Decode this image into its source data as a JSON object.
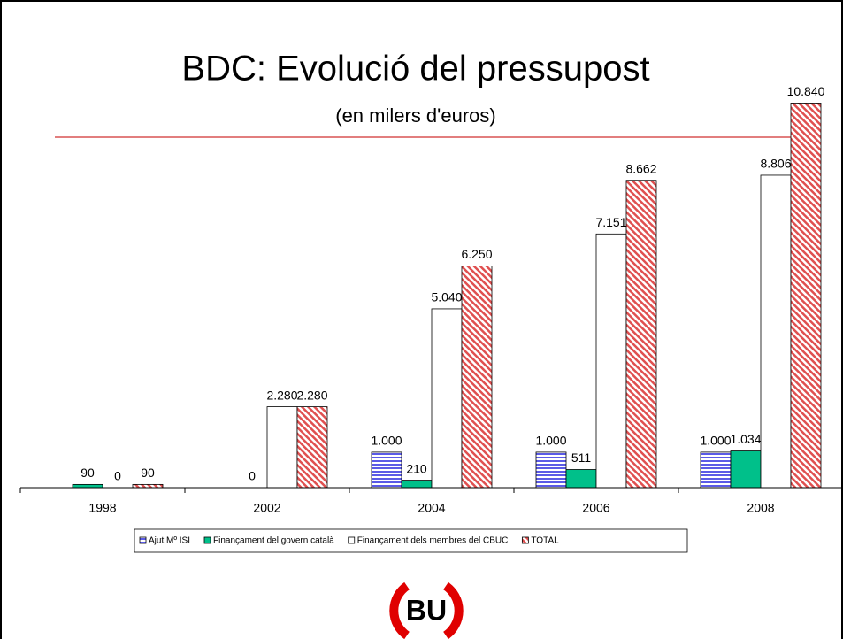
{
  "chart_data": {
    "type": "bar",
    "title": "BDC: Evolució del pressupost",
    "subtitle": "(en milers d'euros)",
    "categories": [
      "1998",
      "2002",
      "2004",
      "2006",
      "2008"
    ],
    "series": [
      {
        "name": "Ajut Mº ISI",
        "color": "#5a5ae6",
        "pattern": "horizontal",
        "values": [
          null,
          null,
          1000,
          1000,
          1000
        ],
        "value_labels": [
          null,
          null,
          "1.000",
          "1.000",
          "1.000"
        ]
      },
      {
        "name": "Finançament del govern català",
        "color": "#00c08a",
        "pattern": "solid",
        "values": [
          90,
          0,
          210,
          511,
          1034
        ],
        "value_labels": [
          "90",
          "0",
          "210",
          "511",
          "1.034"
        ]
      },
      {
        "name": "Finançament dels membres del CBUC",
        "color": "#ffffff",
        "pattern": "solid",
        "values": [
          0,
          2280,
          5040,
          7151,
          8806
        ],
        "value_labels": [
          "0",
          "2.280",
          "5.040",
          "7.151",
          "8.806"
        ]
      },
      {
        "name": "TOTAL",
        "color": "#e05050",
        "pattern": "diagonal",
        "values": [
          90,
          2280,
          6250,
          8662,
          10840
        ],
        "value_labels": [
          "90",
          "2.280",
          "6.250",
          "8.662",
          "10.840"
        ]
      }
    ],
    "ylim": [
      0,
      11000
    ],
    "logo": "BU"
  }
}
